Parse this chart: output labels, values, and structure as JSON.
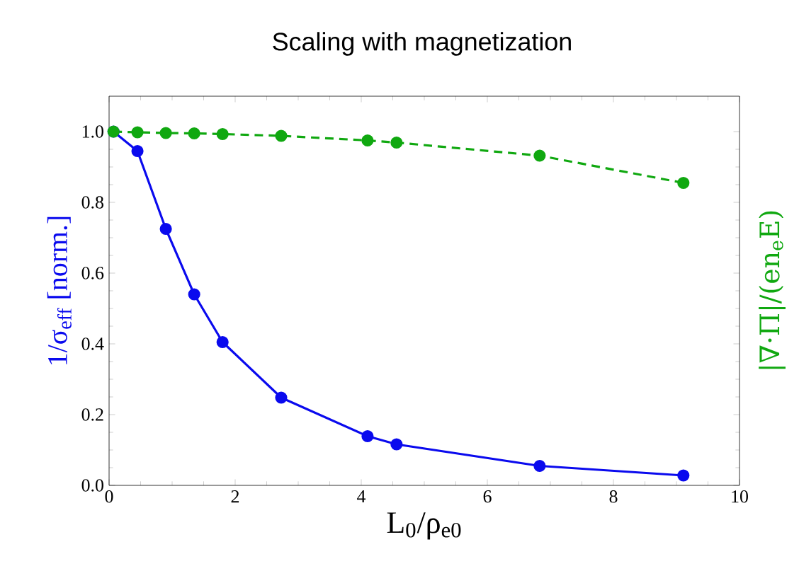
{
  "chart_data": {
    "type": "line",
    "title": "Scaling with magnetization",
    "xlabel": "L$_{0}$/ρ$_{e0}$",
    "ylabel": "1/σ$_{eff}$ [norm.]",
    "y2label": "|∇·Π|/(en$_{e}$E)",
    "x": [
      0.07,
      0.45,
      0.9,
      1.35,
      1.8,
      2.73,
      4.1,
      4.56,
      6.83,
      9.11
    ],
    "series": [
      {
        "color": "#0a0aee",
        "line_style": "solid",
        "values": [
          1.0,
          0.945,
          0.725,
          0.54,
          0.405,
          0.248,
          0.139,
          0.116,
          0.055,
          0.028
        ]
      },
      {
        "color": "#10a810",
        "line_style": "dashed",
        "values": [
          1.0,
          0.998,
          0.996,
          0.995,
          0.993,
          0.988,
          0.975,
          0.969,
          0.932,
          0.855
        ]
      }
    ],
    "marker": "circle",
    "xlim": [
      0,
      10
    ],
    "ylim": [
      0,
      1.1
    ],
    "xticks": [
      0,
      2,
      4,
      6,
      8,
      10
    ],
    "yticks": [
      {
        "value": 0,
        "label": "0.0"
      },
      {
        "value": 0.2,
        "label": "0.2"
      },
      {
        "value": 0.4,
        "label": "0.4"
      },
      {
        "value": 0.6,
        "label": "0.6"
      },
      {
        "value": 0.8,
        "label": "0.8"
      },
      {
        "value": 1.0,
        "label": "1.0"
      }
    ],
    "grid": false
  }
}
